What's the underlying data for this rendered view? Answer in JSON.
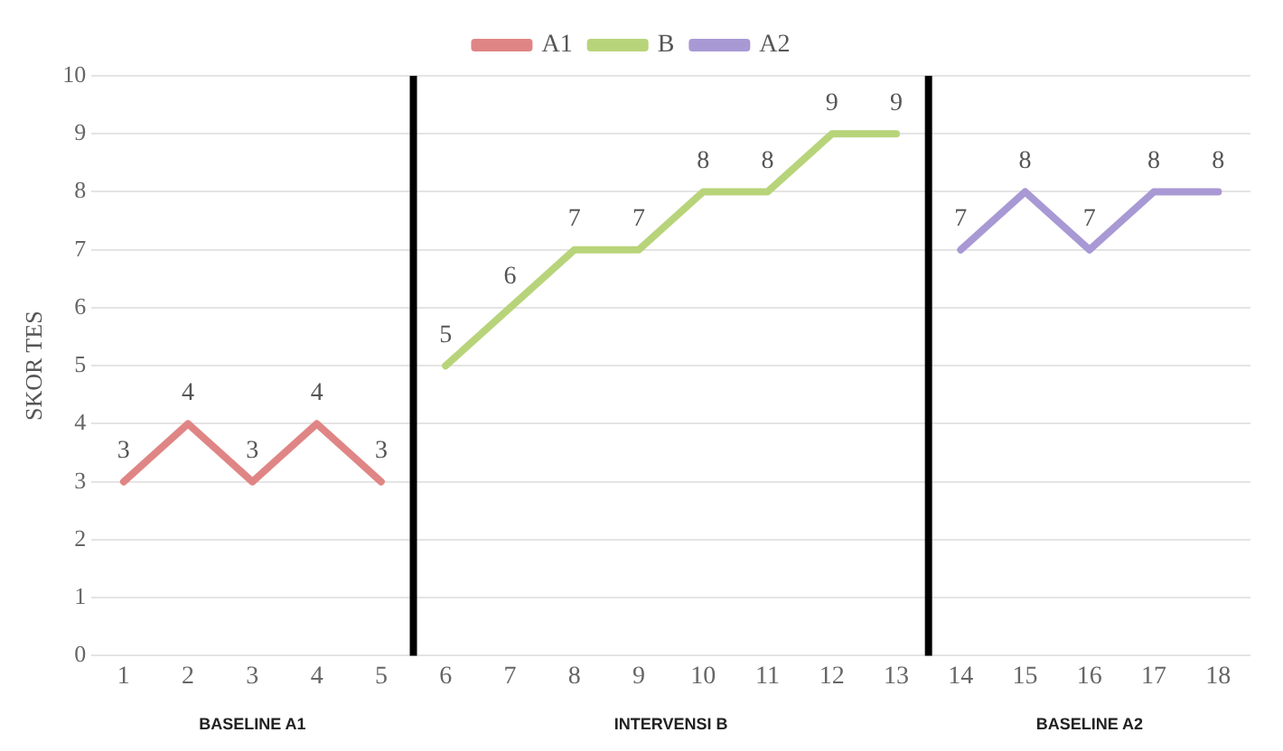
{
  "chart_data": {
    "type": "line",
    "ylabel": "SKOR TES",
    "xlim": [
      0.5,
      18.5
    ],
    "xticks": [
      1,
      2,
      3,
      4,
      5,
      6,
      7,
      8,
      9,
      10,
      11,
      12,
      13,
      14,
      15,
      16,
      17,
      18
    ],
    "ylim": [
      0,
      10
    ],
    "yticks": [
      0,
      1,
      2,
      3,
      4,
      5,
      6,
      7,
      8,
      9,
      10
    ],
    "grid": "y",
    "legend": "top",
    "data_labels": true,
    "marker": "none",
    "series": [
      {
        "name": "A1",
        "color": "#e08585",
        "x": [
          1,
          2,
          3,
          4,
          5
        ],
        "values": [
          3,
          4,
          3,
          4,
          3
        ]
      },
      {
        "name": "B",
        "color": "#b8d47a",
        "x": [
          6,
          7,
          8,
          9,
          10,
          11,
          12,
          13
        ],
        "values": [
          5,
          6,
          7,
          7,
          8,
          8,
          9,
          9
        ]
      },
      {
        "name": "A2",
        "color": "#a899d4",
        "x": [
          14,
          15,
          16,
          17,
          18
        ],
        "values": [
          7,
          8,
          7,
          8,
          8
        ]
      }
    ],
    "ref_lines": [
      {
        "axis": "x",
        "value": 5.5,
        "color": "#000000"
      },
      {
        "axis": "x",
        "value": 13.5,
        "color": "#000000"
      }
    ],
    "annotations": [
      "BASELINE A1",
      "INTERVENSI B",
      "BASELINE A2"
    ]
  }
}
